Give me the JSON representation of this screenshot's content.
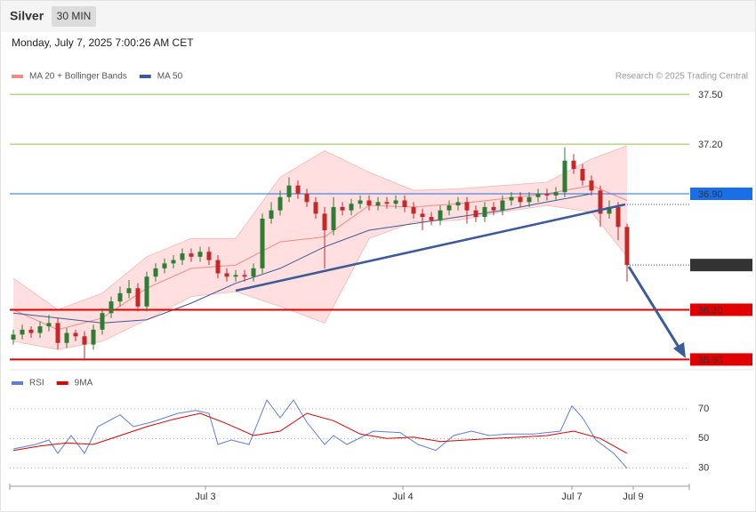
{
  "header": {
    "title": "Silver",
    "interval": "30 MIN",
    "timestamp": "Monday, July 7, 2025 7:00:26 AM CET",
    "credit": "Research © 2025 Trading Central"
  },
  "chart_data": [
    {
      "type": "candlestick",
      "legend": [
        {
          "name": "MA 20 + Bollinger Bands",
          "color": "#f28b82"
        },
        {
          "name": "MA 50",
          "color": "#3d5a99"
        }
      ],
      "xlim": [
        -0.4,
        76
      ],
      "ylim": [
        35.87,
        37.56
      ],
      "up_color": "#2e7d32",
      "down_color": "#c62828",
      "open": [
        36.02,
        36.05,
        36.08,
        36.06,
        36.1,
        36.12,
        36.0,
        36.06,
        36.04,
        35.99,
        36.08,
        36.18,
        36.25,
        36.3,
        36.33,
        36.22,
        36.4,
        36.45,
        36.48,
        36.5,
        36.54,
        36.52,
        36.55,
        36.5,
        36.42,
        36.4,
        36.41,
        36.4,
        36.45,
        36.75,
        36.8,
        36.88,
        36.95,
        36.9,
        36.85,
        36.78,
        36.68,
        36.82,
        36.8,
        36.84,
        36.86,
        36.83,
        36.85,
        36.84,
        36.86,
        36.82,
        36.78,
        36.76,
        36.74,
        36.8,
        36.83,
        36.85,
        36.8,
        36.76,
        36.82,
        36.8,
        36.86,
        36.88,
        36.85,
        36.88,
        36.9,
        36.89,
        36.91,
        37.1,
        37.05,
        36.98,
        36.92,
        36.78,
        36.82,
        36.7
      ],
      "high": [
        36.08,
        36.11,
        36.1,
        36.13,
        36.17,
        36.15,
        36.09,
        36.08,
        36.07,
        36.11,
        36.21,
        36.28,
        36.34,
        36.38,
        36.36,
        36.43,
        36.48,
        36.51,
        36.53,
        36.57,
        36.57,
        36.58,
        36.58,
        36.53,
        36.45,
        36.44,
        36.44,
        36.48,
        36.78,
        36.85,
        36.92,
        37.0,
        36.98,
        36.93,
        36.88,
        36.82,
        36.88,
        36.85,
        36.87,
        36.89,
        36.89,
        36.88,
        36.88,
        36.89,
        36.89,
        36.85,
        36.81,
        36.79,
        36.83,
        36.86,
        36.88,
        36.88,
        36.83,
        36.85,
        36.85,
        36.89,
        36.91,
        36.91,
        36.91,
        36.93,
        36.93,
        36.94,
        37.18,
        37.14,
        37.08,
        37.01,
        36.95,
        36.86,
        36.85,
        36.72
      ],
      "low": [
        35.99,
        36.02,
        36.03,
        36.03,
        36.07,
        35.96,
        35.97,
        36.01,
        35.9,
        35.96,
        36.05,
        36.15,
        36.22,
        36.27,
        36.19,
        36.19,
        36.37,
        36.42,
        36.45,
        36.47,
        36.49,
        36.49,
        36.47,
        36.39,
        36.37,
        36.37,
        36.37,
        36.37,
        36.42,
        36.72,
        36.77,
        36.85,
        36.87,
        36.82,
        36.75,
        36.45,
        36.65,
        36.77,
        36.77,
        36.81,
        36.8,
        36.8,
        36.81,
        36.81,
        36.79,
        36.75,
        36.68,
        36.71,
        36.71,
        36.77,
        36.8,
        36.72,
        36.73,
        36.73,
        36.77,
        36.77,
        36.83,
        36.82,
        36.82,
        36.85,
        36.86,
        36.86,
        36.88,
        37.02,
        36.95,
        36.89,
        36.7,
        36.75,
        36.62,
        36.37
      ],
      "close": [
        36.05,
        36.08,
        36.06,
        36.1,
        36.12,
        36.0,
        36.06,
        36.04,
        35.99,
        36.08,
        36.18,
        36.25,
        36.3,
        36.33,
        36.22,
        36.4,
        36.45,
        36.48,
        36.5,
        36.54,
        36.52,
        36.55,
        36.5,
        36.42,
        36.4,
        36.41,
        36.4,
        36.45,
        36.75,
        36.8,
        36.88,
        36.95,
        36.9,
        36.85,
        36.78,
        36.68,
        36.82,
        36.8,
        36.84,
        36.86,
        36.83,
        36.85,
        36.84,
        36.86,
        36.82,
        36.78,
        36.76,
        36.74,
        36.8,
        36.83,
        36.85,
        36.8,
        36.76,
        36.82,
        36.8,
        36.86,
        36.88,
        36.85,
        36.88,
        36.9,
        36.89,
        36.91,
        37.1,
        37.05,
        36.98,
        36.92,
        36.78,
        36.82,
        36.7,
        36.47
      ],
      "bands": {
        "color": "#ffd9d9",
        "x": [
          0,
          5,
          10,
          15,
          20,
          25,
          30,
          35,
          40,
          45,
          50,
          55,
          60,
          65,
          69
        ],
        "upper": [
          36.39,
          36.2,
          36.3,
          36.52,
          36.63,
          36.63,
          37.0,
          37.16,
          37.03,
          36.92,
          36.93,
          36.95,
          36.97,
          37.11,
          37.19
        ],
        "lower": [
          36.01,
          35.96,
          36.01,
          36.14,
          36.28,
          36.31,
          36.22,
          36.12,
          36.63,
          36.73,
          36.74,
          36.79,
          36.83,
          36.79,
          36.52
        ]
      },
      "ma20": {
        "color": "#f28b82",
        "x": [
          0,
          5,
          10,
          15,
          20,
          25,
          30,
          35,
          40,
          45,
          50,
          55,
          60,
          65,
          69
        ],
        "values": [
          36.2,
          36.08,
          36.15,
          36.33,
          36.45,
          36.47,
          36.61,
          36.64,
          36.83,
          36.82,
          36.84,
          36.87,
          36.9,
          36.95,
          36.86
        ]
      },
      "ma50": {
        "color": "#3d5a99",
        "x": [
          0,
          5,
          10,
          15,
          20,
          25,
          30,
          35,
          40,
          45,
          50,
          55,
          60,
          65,
          69
        ],
        "values": [
          36.18,
          36.15,
          36.12,
          36.14,
          36.24,
          36.36,
          36.45,
          36.58,
          36.68,
          36.72,
          36.76,
          36.8,
          36.85,
          36.9,
          36.9
        ]
      },
      "levels": [
        {
          "value": 37.5,
          "label": "37.50",
          "color": "#8cc63f",
          "kind": "line"
        },
        {
          "value": 37.2,
          "label": "37.20",
          "color": "#8cc63f",
          "kind": "line"
        },
        {
          "value": 36.9,
          "label": "36.90",
          "color": "#1a6fe8",
          "kind": "box"
        },
        {
          "value": 36.47,
          "label": "36.47",
          "color": "#333333",
          "kind": "current"
        },
        {
          "value": 36.2,
          "label": "36.20",
          "color": "#e00000",
          "kind": "box"
        },
        {
          "value": 35.9,
          "label": "35.90",
          "color": "#e00000",
          "kind": "box"
        }
      ]
    },
    {
      "type": "line",
      "legend": [
        {
          "name": "RSI",
          "color": "#5b7fe0"
        },
        {
          "name": "9MA",
          "color": "#e00000"
        }
      ],
      "xlim": [
        -0.4,
        76
      ],
      "ylim": [
        22,
        82
      ],
      "yticks": [
        30,
        50,
        70
      ],
      "xticks": [
        {
          "value": 21.6,
          "label": "Jul 3"
        },
        {
          "value": 43.8,
          "label": "Jul 4"
        },
        {
          "value": 62.8,
          "label": "Jul 7"
        },
        {
          "value": 69.7,
          "label": "Jul 9"
        }
      ],
      "series": [
        {
          "name": "RSI",
          "color": "#5b7fe0",
          "x": [
            0,
            2.5,
            4,
            5,
            6.5,
            8,
            9.5,
            12,
            13.5,
            15.5,
            18.5,
            20.5,
            22,
            23,
            24.5,
            26.5,
            28.5,
            30,
            31.5,
            33,
            35,
            36,
            37.5,
            40.5,
            43.5,
            45.5,
            47.5,
            49.5,
            51.5,
            53.5,
            55.5,
            58.5,
            61.5,
            62.8,
            64,
            65.5,
            67.5,
            69
          ],
          "values": [
            43,
            46,
            49,
            40,
            52,
            40,
            58,
            66,
            58,
            61,
            67,
            69,
            67,
            46,
            49,
            46,
            76,
            64,
            76,
            61,
            46,
            52,
            46,
            55,
            54,
            46,
            42,
            52,
            55,
            52,
            53,
            53,
            55,
            72,
            64,
            49,
            40,
            30
          ]
        },
        {
          "name": "9MA",
          "color": "#e00000",
          "x": [
            0,
            3,
            6,
            9,
            12,
            15,
            18,
            21,
            24,
            27,
            30,
            33,
            36,
            39,
            42,
            45,
            48,
            51,
            54,
            57,
            60,
            63,
            66,
            69
          ],
          "values": [
            42,
            45,
            47,
            46,
            52,
            58,
            63,
            67,
            60,
            52,
            55,
            67,
            62,
            53,
            50,
            51,
            48,
            49,
            50,
            51,
            52,
            55,
            50,
            40
          ]
        }
      ]
    }
  ]
}
